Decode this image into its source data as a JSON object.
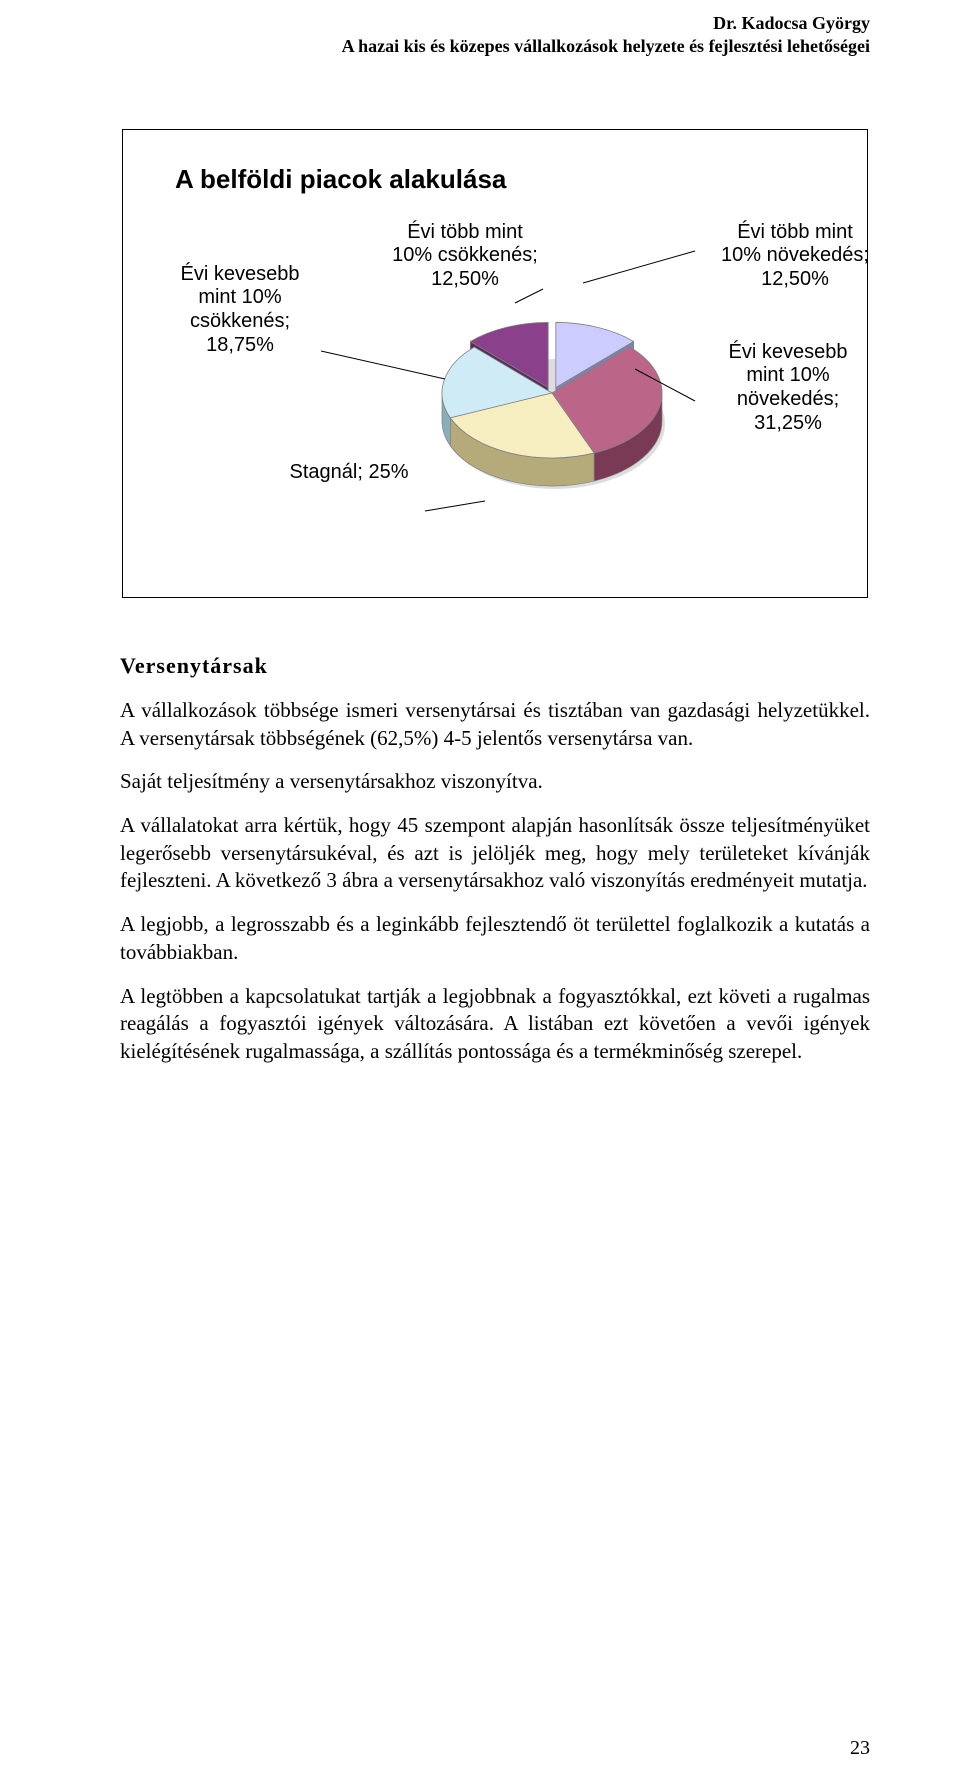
{
  "header": {
    "author": "Dr. Kadocsa György",
    "subtitle": "A hazai kis és közepes vállalkozások helyzete és fejlesztési lehetőségei"
  },
  "chart": {
    "type": "pie",
    "title": "A belföldi piacok alakulása",
    "background_color": "#ffffff",
    "border_color": "#808080",
    "title_fontsize": 26,
    "label_fontsize": 20,
    "slices": [
      {
        "label": "Évi több mint\n10% növekedés;\n12,50%",
        "value": 12.5,
        "color": "#ccccff",
        "side_color": "#8080b0"
      },
      {
        "label": "Évi kevesebb\nmint 10%\nnövekedés;\n31,25%",
        "value": 31.25,
        "color": "#bb6688",
        "side_color": "#7a3a55"
      },
      {
        "label": "Stagnál; 25%",
        "value": 25.0,
        "color": "#f6edc0",
        "side_color": "#b5aa7a"
      },
      {
        "label": "Évi kevesebb\nmint 10%\ncsökkenés;\n18,75%",
        "value": 18.75,
        "color": "#cfebf5",
        "side_color": "#8aaeb9"
      },
      {
        "label": "Évi több mint\n10% csökkenés;\n12,50%",
        "value": 12.5,
        "color": "#8a408a",
        "side_color": "#5a2a5a"
      }
    ]
  },
  "section": {
    "title": "Versenytársak",
    "paragraphs": [
      "A vállalkozások többsége ismeri versenytársai és tisztában van gazdasági helyzetükkel. A versenytársak többségének (62,5%) 4-5 jelentős versenytársa van.",
      "Saját teljesítmény a versenytársakhoz viszonyítva.",
      "A vállalatokat arra kértük, hogy 45 szempont alapján hasonlítsák össze teljesítményüket legerősebb versenytársukéval, és azt is jelöljék meg, hogy mely területeket kívánják fejleszteni.  A következő 3 ábra a versenytársakhoz való viszonyítás eredményeit mutatja.",
      "A legjobb, a legrosszabb és a leginkább fejlesztendő öt területtel foglalkozik a kutatás a továbbiakban.",
      "A legtöbben a kapcsolatukat tartják a legjobbnak a fogyasztókkal, ezt követi a rugalmas reagálás a fogyasztói igények változására. A listában ezt követően a vevői igények kielégítésének rugalmassága, a szállítás pontossága és a termékminőség szerepel."
    ]
  },
  "page_number": "23"
}
